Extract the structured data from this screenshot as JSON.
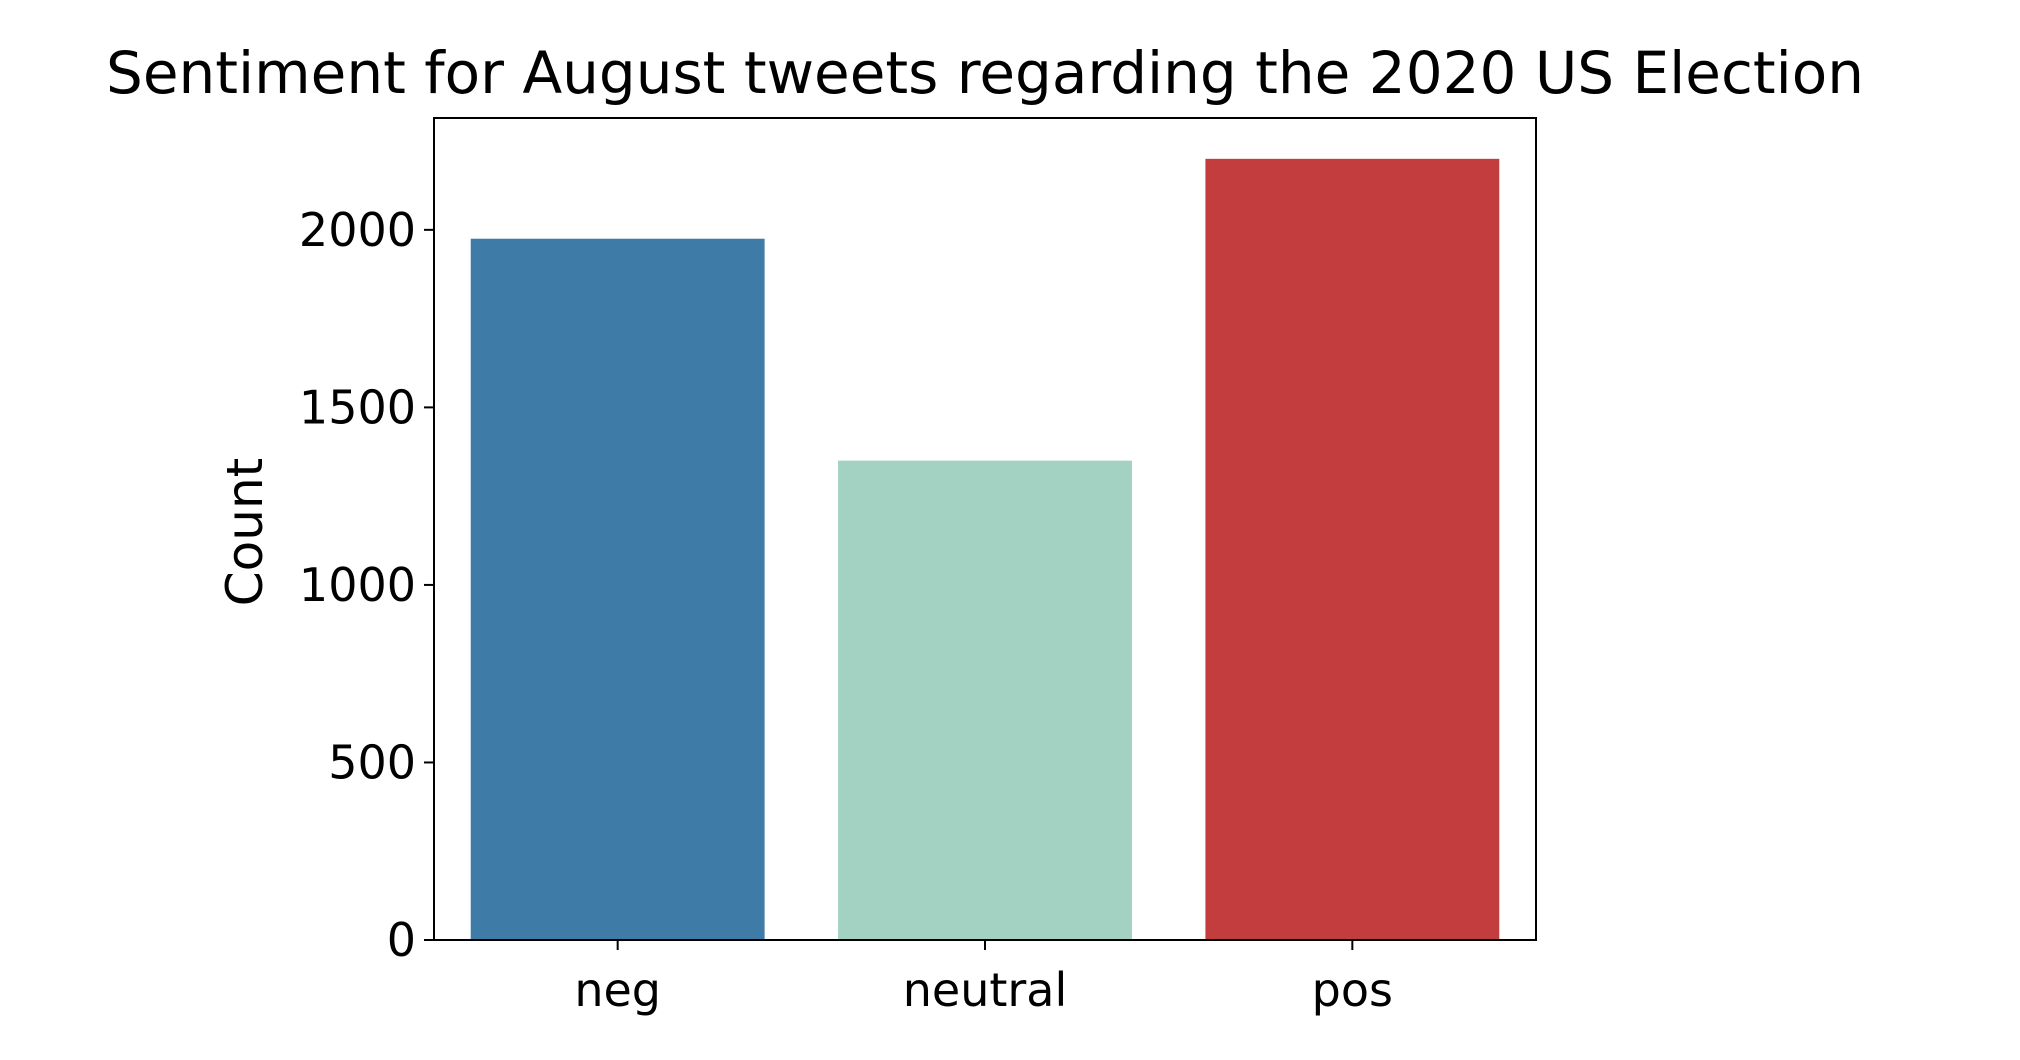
{
  "chart_data": {
    "type": "bar",
    "title": "Sentiment for August tweets regarding the 2020 US Election",
    "xlabel": "",
    "ylabel": "Count",
    "categories": [
      "neg",
      "neutral",
      "pos"
    ],
    "values": [
      1975,
      1350,
      2200
    ],
    "colors": [
      "#3f7ba7",
      "#a3d1c2",
      "#c33c3e"
    ],
    "ylim": [
      0,
      2315
    ],
    "yticks": [
      0,
      500,
      1000,
      1500,
      2000
    ],
    "grid": false,
    "legend": "none"
  }
}
